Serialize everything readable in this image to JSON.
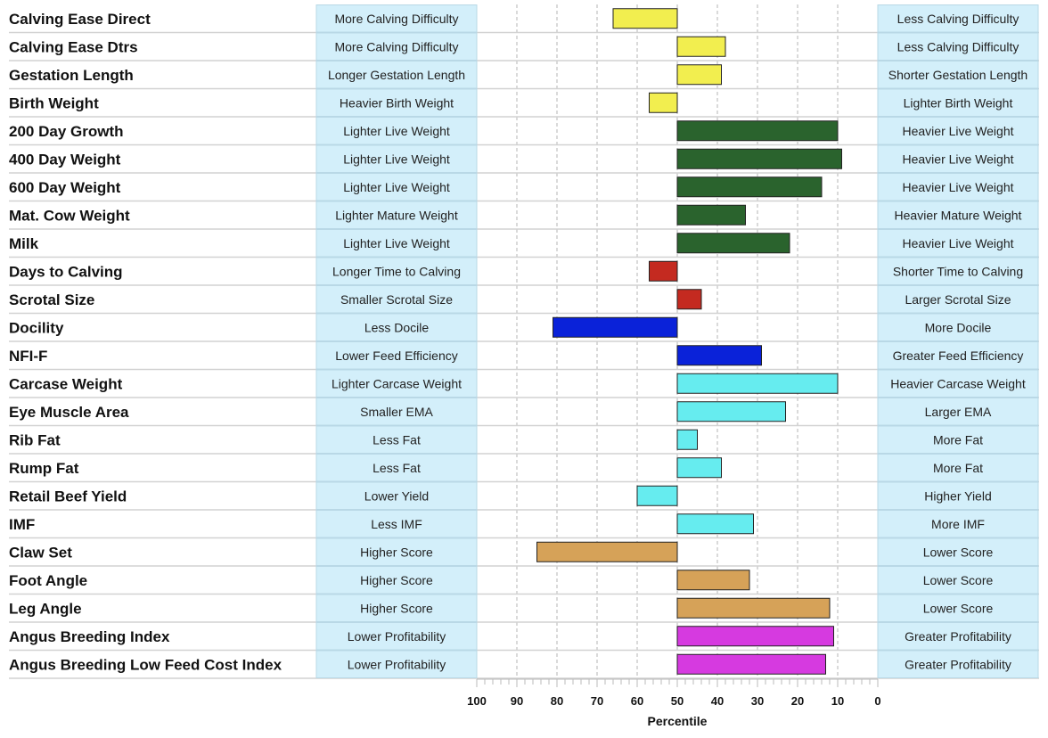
{
  "chart_data": {
    "type": "bar",
    "orientation": "horizontal-diverging",
    "xlabel": "Percentile",
    "xlim": [
      100,
      0
    ],
    "baseline": 50,
    "x_ticks": [
      100,
      90,
      80,
      70,
      60,
      50,
      40,
      30,
      20,
      10,
      0
    ],
    "colors": {
      "calving": "#f2ee4f",
      "growth": "#2a632d",
      "fertility": "#c42a20",
      "temperament": "#0a22d9",
      "carcase": "#66ecef",
      "structure": "#d6a258",
      "index": "#d63ae0",
      "panel": "#d3effa",
      "panel_border": "#b9d8e6",
      "grid": "#b5b5b5",
      "row_line": "#d2d2d2"
    },
    "rows": [
      {
        "trait": "Calving Ease Direct",
        "low_label": "More Calving Difficulty",
        "high_label": "Less Calving Difficulty",
        "percentile": 66,
        "group": "calving"
      },
      {
        "trait": "Calving Ease Dtrs",
        "low_label": "More Calving Difficulty",
        "high_label": "Less Calving Difficulty",
        "percentile": 38,
        "group": "calving"
      },
      {
        "trait": "Gestation Length",
        "low_label": "Longer Gestation Length",
        "high_label": "Shorter Gestation Length",
        "percentile": 39,
        "group": "calving"
      },
      {
        "trait": "Birth Weight",
        "low_label": "Heavier Birth Weight",
        "high_label": "Lighter Birth Weight",
        "percentile": 57,
        "group": "calving"
      },
      {
        "trait": "200 Day Growth",
        "low_label": "Lighter Live Weight",
        "high_label": "Heavier Live Weight",
        "percentile": 10,
        "group": "growth"
      },
      {
        "trait": "400 Day Weight",
        "low_label": "Lighter Live Weight",
        "high_label": "Heavier Live Weight",
        "percentile": 9,
        "group": "growth"
      },
      {
        "trait": "600 Day Weight",
        "low_label": "Lighter Live Weight",
        "high_label": "Heavier Live Weight",
        "percentile": 14,
        "group": "growth"
      },
      {
        "trait": "Mat. Cow Weight",
        "low_label": "Lighter Mature Weight",
        "high_label": "Heavier Mature Weight",
        "percentile": 33,
        "group": "growth"
      },
      {
        "trait": "Milk",
        "low_label": "Lighter Live Weight",
        "high_label": "Heavier Live Weight",
        "percentile": 22,
        "group": "growth"
      },
      {
        "trait": "Days to Calving",
        "low_label": "Longer Time to Calving",
        "high_label": "Shorter Time to Calving",
        "percentile": 57,
        "group": "fertility"
      },
      {
        "trait": "Scrotal Size",
        "low_label": "Smaller Scrotal Size",
        "high_label": "Larger Scrotal Size",
        "percentile": 44,
        "group": "fertility"
      },
      {
        "trait": "Docility",
        "low_label": "Less Docile",
        "high_label": "More Docile",
        "percentile": 81,
        "group": "temperament"
      },
      {
        "trait": "NFI-F",
        "low_label": "Lower Feed Efficiency",
        "high_label": "Greater Feed Efficiency",
        "percentile": 29,
        "group": "temperament"
      },
      {
        "trait": "Carcase Weight",
        "low_label": "Lighter Carcase Weight",
        "high_label": "Heavier Carcase Weight",
        "percentile": 10,
        "group": "carcase"
      },
      {
        "trait": "Eye Muscle Area",
        "low_label": "Smaller EMA",
        "high_label": "Larger EMA",
        "percentile": 23,
        "group": "carcase"
      },
      {
        "trait": "Rib Fat",
        "low_label": "Less Fat",
        "high_label": "More Fat",
        "percentile": 45,
        "group": "carcase"
      },
      {
        "trait": "Rump Fat",
        "low_label": "Less Fat",
        "high_label": "More Fat",
        "percentile": 39,
        "group": "carcase"
      },
      {
        "trait": "Retail Beef Yield",
        "low_label": "Lower Yield",
        "high_label": "Higher Yield",
        "percentile": 60,
        "group": "carcase"
      },
      {
        "trait": "IMF",
        "low_label": "Less IMF",
        "high_label": "More IMF",
        "percentile": 31,
        "group": "carcase"
      },
      {
        "trait": "Claw Set",
        "low_label": "Higher Score",
        "high_label": "Lower Score",
        "percentile": 85,
        "group": "structure"
      },
      {
        "trait": "Foot Angle",
        "low_label": "Higher Score",
        "high_label": "Lower Score",
        "percentile": 32,
        "group": "structure"
      },
      {
        "trait": "Leg Angle",
        "low_label": "Higher Score",
        "high_label": "Lower Score",
        "percentile": 12,
        "group": "structure"
      },
      {
        "trait": "Angus Breeding Index",
        "low_label": "Lower Profitability",
        "high_label": "Greater Profitability",
        "percentile": 11,
        "group": "index"
      },
      {
        "trait": "Angus Breeding Low Feed Cost Index",
        "low_label": "Lower Profitability",
        "high_label": "Greater Profitability",
        "percentile": 13,
        "group": "index"
      }
    ]
  }
}
